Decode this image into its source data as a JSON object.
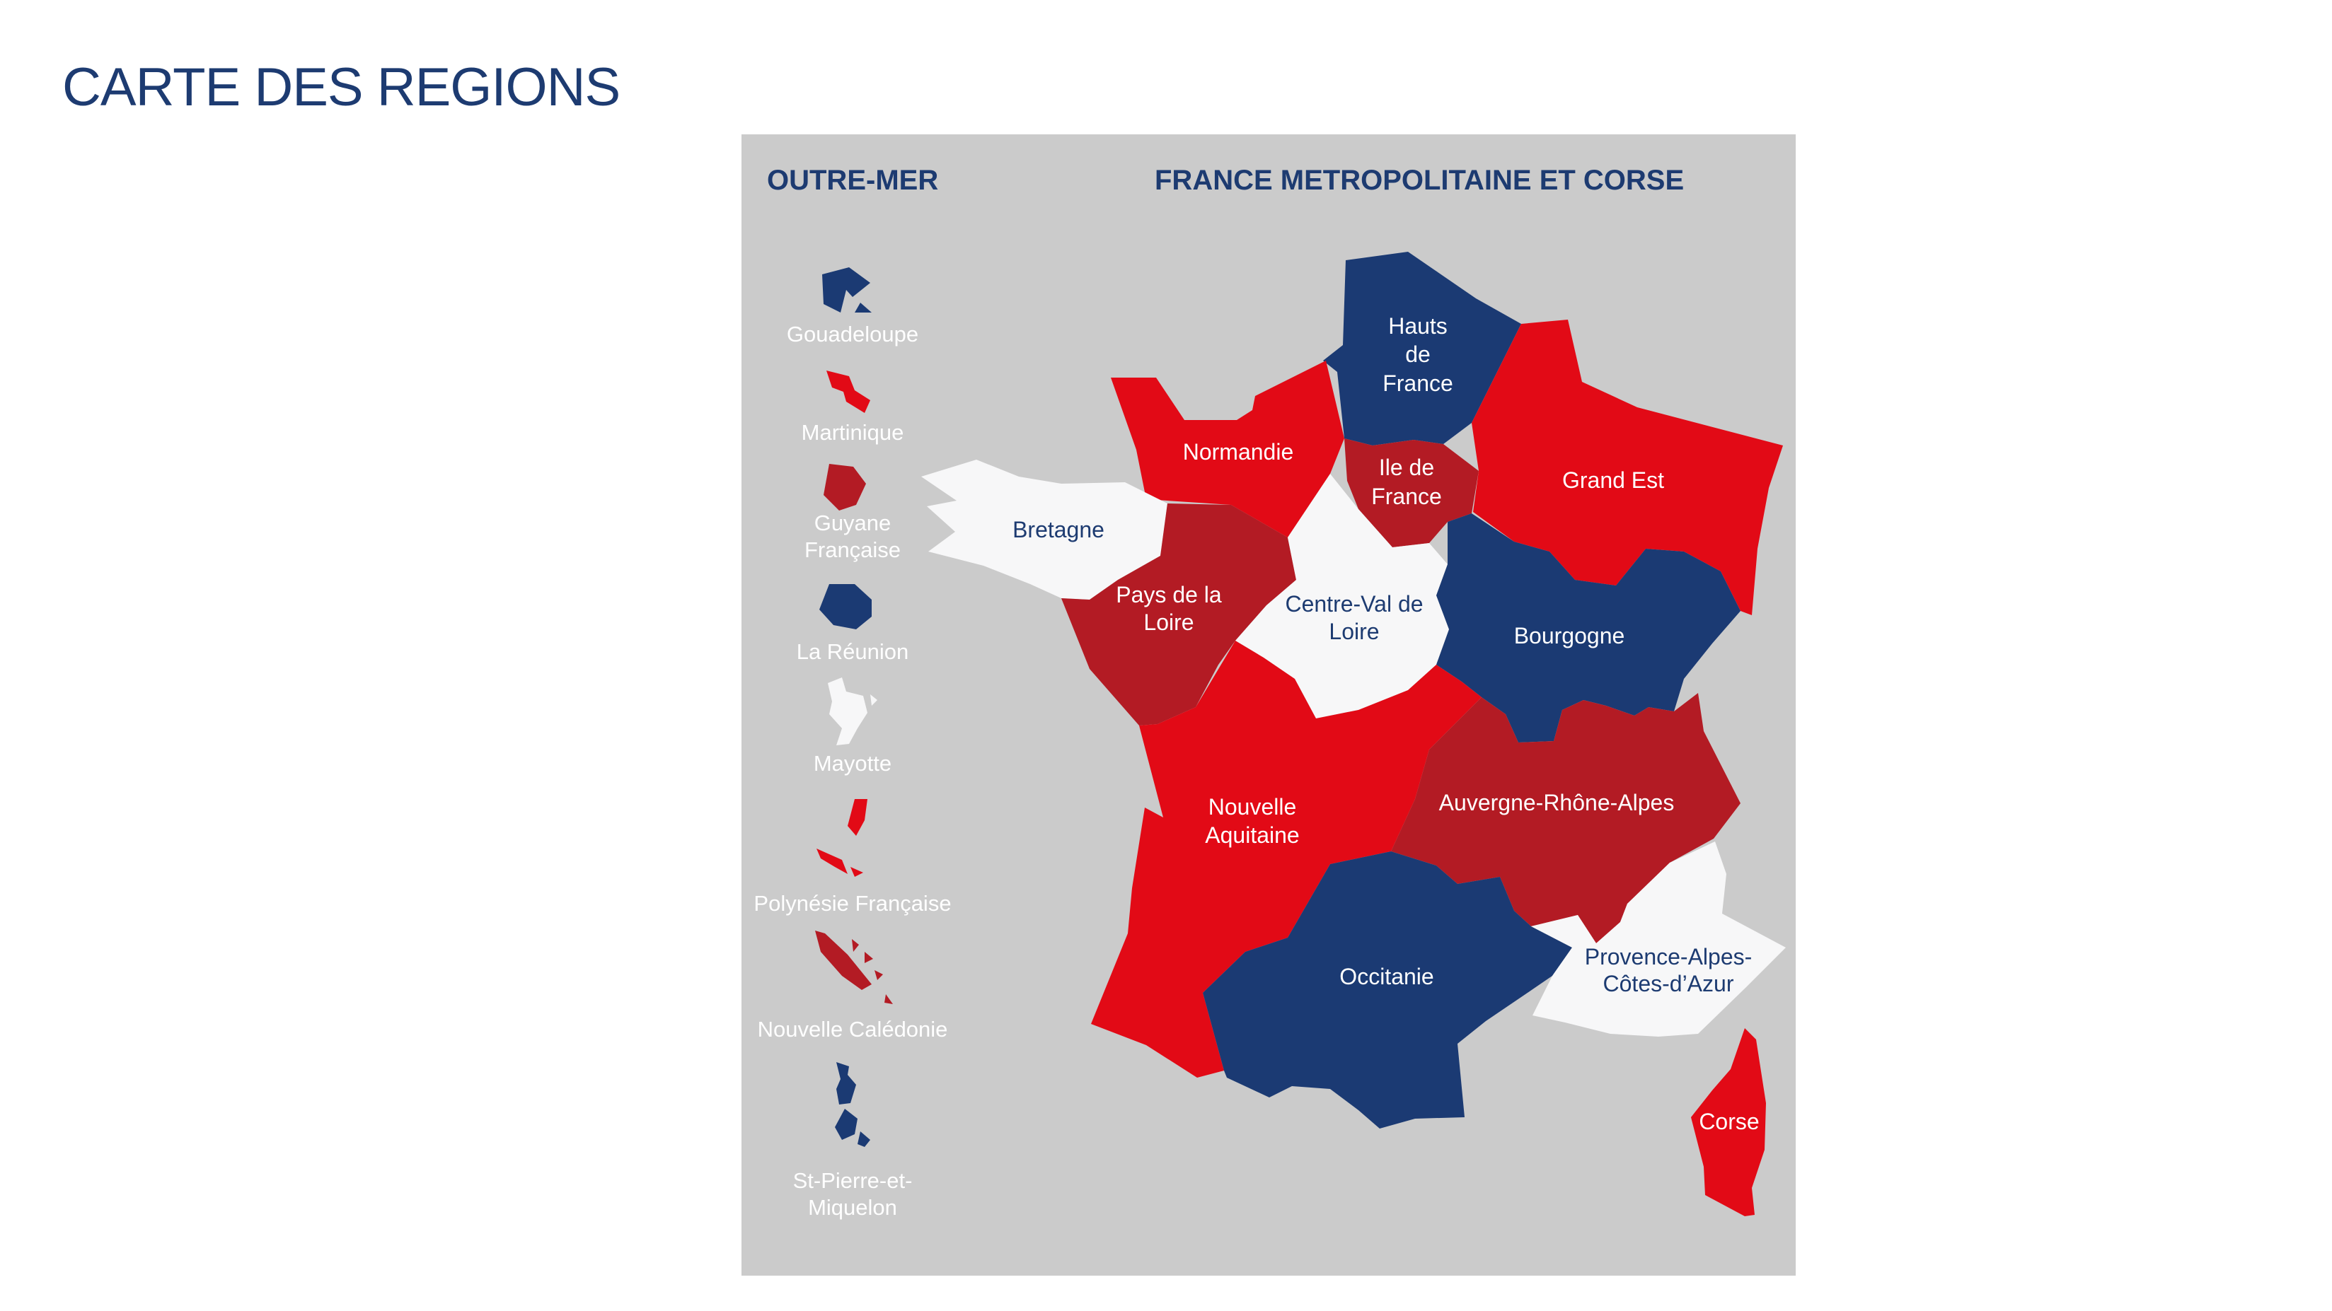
{
  "title": "CARTE DES REGIONS",
  "colors": {
    "blue": "#1b3a73",
    "red": "#e20a16",
    "darkred": "#b31b24",
    "white": "#f7f7f8",
    "panel": "#cbcbcb"
  },
  "sections": {
    "overseas": "OUTRE-MER",
    "metropole": "FRANCE METROPOLITAINE ET CORSE"
  },
  "overseas": [
    {
      "name": "Gouadeloupe",
      "color": "blue"
    },
    {
      "name": "Martinique",
      "color": "red"
    },
    {
      "name": "Guyane Française",
      "color": "darkred",
      "lines": [
        "Guyane",
        "Française"
      ]
    },
    {
      "name": "La Réunion",
      "color": "blue"
    },
    {
      "name": "Mayotte",
      "color": "white"
    },
    {
      "name": "Polynésie Française",
      "color": "red"
    },
    {
      "name": "Nouvelle Calédonie",
      "color": "darkred"
    },
    {
      "name": "St-Pierre-et-Miquelon",
      "color": "blue",
      "lines": [
        "St-Pierre-et-",
        "Miquelon"
      ]
    }
  ],
  "regions": [
    {
      "name": "Hauts de France",
      "color": "blue",
      "lines": [
        "Hauts",
        "de",
        "France"
      ]
    },
    {
      "name": "Normandie",
      "color": "red"
    },
    {
      "name": "Ile de France",
      "color": "darkred",
      "lines": [
        "Ile de",
        "France"
      ]
    },
    {
      "name": "Grand Est",
      "color": "red"
    },
    {
      "name": "Bretagne",
      "color": "white"
    },
    {
      "name": "Pays de la Loire",
      "color": "darkred",
      "lines": [
        "Pays de la",
        "Loire"
      ]
    },
    {
      "name": "Centre-Val de Loire",
      "color": "white",
      "lines": [
        "Centre-Val de",
        "Loire"
      ]
    },
    {
      "name": "Bourgogne",
      "color": "blue"
    },
    {
      "name": "Nouvelle Aquitaine",
      "color": "red",
      "lines": [
        "Nouvelle",
        "Aquitaine"
      ]
    },
    {
      "name": "Auvergne-Rhône-Alpes",
      "color": "darkred"
    },
    {
      "name": "Occitanie",
      "color": "blue"
    },
    {
      "name": "Provence-Alpes-Côtes-d'Azur",
      "color": "white",
      "lines": [
        "Provence-Alpes-",
        "Côtes-d’Azur"
      ]
    },
    {
      "name": "Corse",
      "color": "red"
    }
  ]
}
